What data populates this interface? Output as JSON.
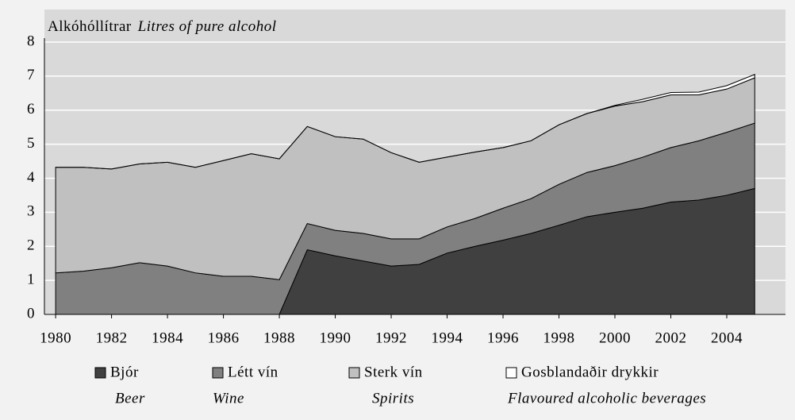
{
  "chart_data": {
    "type": "stacked_area",
    "ylabel": "Alkóhóllítrar",
    "ylabel_en": "Litres of pure alcohol",
    "x": [
      1980,
      1981,
      1982,
      1983,
      1984,
      1985,
      1986,
      1987,
      1988,
      1989,
      1990,
      1991,
      1992,
      1993,
      1994,
      1995,
      1996,
      1997,
      1998,
      1999,
      2000,
      2001,
      2002,
      2003,
      2004,
      2005
    ],
    "series": [
      {
        "name": "Bjór",
        "name_en": "Beer",
        "color": "#404040",
        "values": [
          0,
          0,
          0,
          0,
          0,
          0,
          0,
          0,
          0,
          1.9,
          1.72,
          1.57,
          1.42,
          1.47,
          1.8,
          2.0,
          2.18,
          2.38,
          2.62,
          2.87,
          3.0,
          3.12,
          3.3,
          3.36,
          3.5,
          3.7
        ]
      },
      {
        "name": "Létt vín",
        "name_en": "Wine",
        "color": "#808080",
        "values": [
          1.22,
          1.27,
          1.37,
          1.52,
          1.42,
          1.22,
          1.12,
          1.12,
          1.02,
          0.77,
          0.75,
          0.81,
          0.8,
          0.75,
          0.77,
          0.82,
          0.94,
          1.02,
          1.2,
          1.3,
          1.37,
          1.5,
          1.6,
          1.74,
          1.85,
          1.92
        ]
      },
      {
        "name": "Sterk vín",
        "name_en": "Spirits",
        "color": "#c0c0c0",
        "values": [
          3.1,
          3.05,
          2.9,
          2.9,
          3.05,
          3.1,
          3.4,
          3.6,
          3.55,
          2.85,
          2.75,
          2.77,
          2.53,
          2.25,
          2.05,
          1.95,
          1.78,
          1.7,
          1.75,
          1.73,
          1.75,
          1.63,
          1.55,
          1.35,
          1.27,
          1.33
        ]
      },
      {
        "name": "Gosblandaðir drykkir",
        "name_en": "Flavoured alcoholic beverages",
        "color": "#ffffff",
        "values": [
          0,
          0,
          0,
          0,
          0,
          0,
          0,
          0,
          0,
          0,
          0,
          0,
          0,
          0,
          0,
          0,
          0,
          0,
          0,
          0,
          0.02,
          0.07,
          0.07,
          0.08,
          0.1,
          0.1
        ]
      }
    ],
    "xlim": [
      1979.6,
      2006.1
    ],
    "xticks": [
      1980,
      1982,
      1984,
      1986,
      1988,
      1990,
      1992,
      1994,
      1996,
      1998,
      2000,
      2002,
      2004
    ],
    "ylim": [
      0,
      8
    ],
    "yticks": [
      0,
      1,
      2,
      3,
      4,
      5,
      6,
      7,
      8
    ],
    "grid": true
  }
}
